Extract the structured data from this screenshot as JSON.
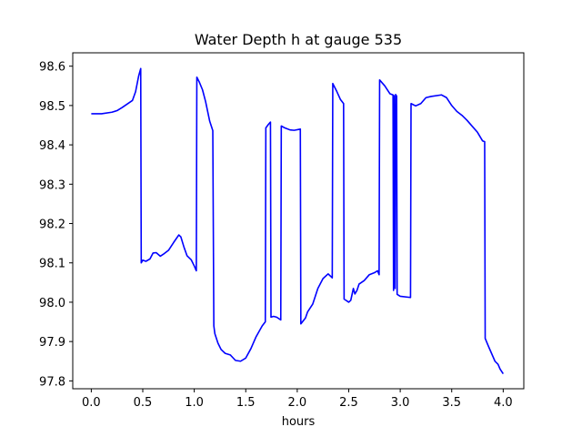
{
  "chart_data": {
    "type": "line",
    "title": "Water Depth h at gauge 535",
    "xlabel": "hours",
    "ylabel": "",
    "xlim": [
      -0.18,
      4.2
    ],
    "ylim": [
      97.78,
      98.634
    ],
    "xticks": [
      0.0,
      0.5,
      1.0,
      1.5,
      2.0,
      2.5,
      3.0,
      3.5,
      4.0
    ],
    "xtick_labels": [
      "0.0",
      "0.5",
      "1.0",
      "1.5",
      "2.0",
      "2.5",
      "3.0",
      "3.5",
      "4.0"
    ],
    "yticks": [
      97.8,
      97.9,
      98.0,
      98.1,
      98.2,
      98.3,
      98.4,
      98.5,
      98.6
    ],
    "ytick_labels": [
      "97.8",
      "97.9",
      "98.0",
      "98.1",
      "98.2",
      "98.3",
      "98.4",
      "98.5",
      "98.6"
    ],
    "grid": false,
    "series": [
      {
        "color": "#0000ff",
        "points": [
          [
            0.0,
            98.479
          ],
          [
            0.1,
            98.479
          ],
          [
            0.2,
            98.483
          ],
          [
            0.25,
            98.487
          ],
          [
            0.3,
            98.495
          ],
          [
            0.4,
            98.513
          ],
          [
            0.43,
            98.535
          ],
          [
            0.46,
            98.575
          ],
          [
            0.48,
            98.594
          ],
          [
            0.485,
            98.1
          ],
          [
            0.5,
            98.107
          ],
          [
            0.53,
            98.104
          ],
          [
            0.57,
            98.11
          ],
          [
            0.6,
            98.125
          ],
          [
            0.63,
            98.126
          ],
          [
            0.67,
            98.117
          ],
          [
            0.7,
            98.122
          ],
          [
            0.75,
            98.132
          ],
          [
            0.8,
            98.152
          ],
          [
            0.85,
            98.171
          ],
          [
            0.87,
            98.166
          ],
          [
            0.9,
            98.14
          ],
          [
            0.93,
            98.118
          ],
          [
            0.97,
            98.108
          ],
          [
            1.0,
            98.092
          ],
          [
            1.02,
            98.08
          ],
          [
            1.025,
            98.572
          ],
          [
            1.05,
            98.559
          ],
          [
            1.08,
            98.54
          ],
          [
            1.11,
            98.51
          ],
          [
            1.15,
            98.46
          ],
          [
            1.18,
            98.436
          ],
          [
            1.19,
            97.94
          ],
          [
            1.2,
            97.92
          ],
          [
            1.23,
            97.896
          ],
          [
            1.26,
            97.88
          ],
          [
            1.3,
            97.87
          ],
          [
            1.35,
            97.866
          ],
          [
            1.4,
            97.852
          ],
          [
            1.45,
            97.85
          ],
          [
            1.5,
            97.858
          ],
          [
            1.55,
            97.882
          ],
          [
            1.6,
            97.912
          ],
          [
            1.66,
            97.94
          ],
          [
            1.69,
            97.95
          ],
          [
            1.695,
            98.443
          ],
          [
            1.72,
            98.452
          ],
          [
            1.74,
            98.458
          ],
          [
            1.745,
            97.962
          ],
          [
            1.77,
            97.964
          ],
          [
            1.8,
            97.962
          ],
          [
            1.84,
            97.955
          ],
          [
            1.845,
            98.448
          ],
          [
            1.88,
            98.443
          ],
          [
            1.93,
            98.438
          ],
          [
            1.97,
            98.437
          ],
          [
            2.03,
            98.44
          ],
          [
            2.035,
            97.945
          ],
          [
            2.08,
            97.96
          ],
          [
            2.1,
            97.975
          ],
          [
            2.15,
            97.995
          ],
          [
            2.2,
            98.035
          ],
          [
            2.25,
            98.06
          ],
          [
            2.3,
            98.072
          ],
          [
            2.34,
            98.062
          ],
          [
            2.345,
            98.556
          ],
          [
            2.38,
            98.538
          ],
          [
            2.42,
            98.515
          ],
          [
            2.45,
            98.505
          ],
          [
            2.455,
            98.008
          ],
          [
            2.5,
            98.0
          ],
          [
            2.52,
            98.005
          ],
          [
            2.545,
            98.035
          ],
          [
            2.56,
            98.021
          ],
          [
            2.58,
            98.03
          ],
          [
            2.6,
            98.046
          ],
          [
            2.65,
            98.055
          ],
          [
            2.7,
            98.07
          ],
          [
            2.75,
            98.075
          ],
          [
            2.78,
            98.08
          ],
          [
            2.795,
            98.07
          ],
          [
            2.8,
            98.565
          ],
          [
            2.85,
            98.55
          ],
          [
            2.9,
            98.53
          ],
          [
            2.93,
            98.527
          ],
          [
            2.935,
            98.03
          ],
          [
            2.94,
            98.525
          ],
          [
            2.95,
            98.035
          ],
          [
            2.955,
            98.528
          ],
          [
            2.965,
            98.524
          ],
          [
            2.97,
            98.02
          ],
          [
            3.0,
            98.015
          ],
          [
            3.1,
            98.012
          ],
          [
            3.105,
            98.505
          ],
          [
            3.15,
            98.499
          ],
          [
            3.2,
            98.505
          ],
          [
            3.25,
            98.52
          ],
          [
            3.3,
            98.523
          ],
          [
            3.4,
            98.527
          ],
          [
            3.45,
            98.52
          ],
          [
            3.5,
            98.5
          ],
          [
            3.55,
            98.485
          ],
          [
            3.6,
            98.475
          ],
          [
            3.65,
            98.462
          ],
          [
            3.7,
            98.447
          ],
          [
            3.75,
            98.432
          ],
          [
            3.8,
            98.41
          ],
          [
            3.82,
            98.408
          ],
          [
            3.825,
            97.908
          ],
          [
            3.85,
            97.892
          ],
          [
            3.88,
            97.874
          ],
          [
            3.9,
            97.862
          ],
          [
            3.92,
            97.85
          ],
          [
            3.95,
            97.842
          ],
          [
            3.97,
            97.83
          ],
          [
            4.0,
            97.818
          ]
        ]
      }
    ]
  }
}
